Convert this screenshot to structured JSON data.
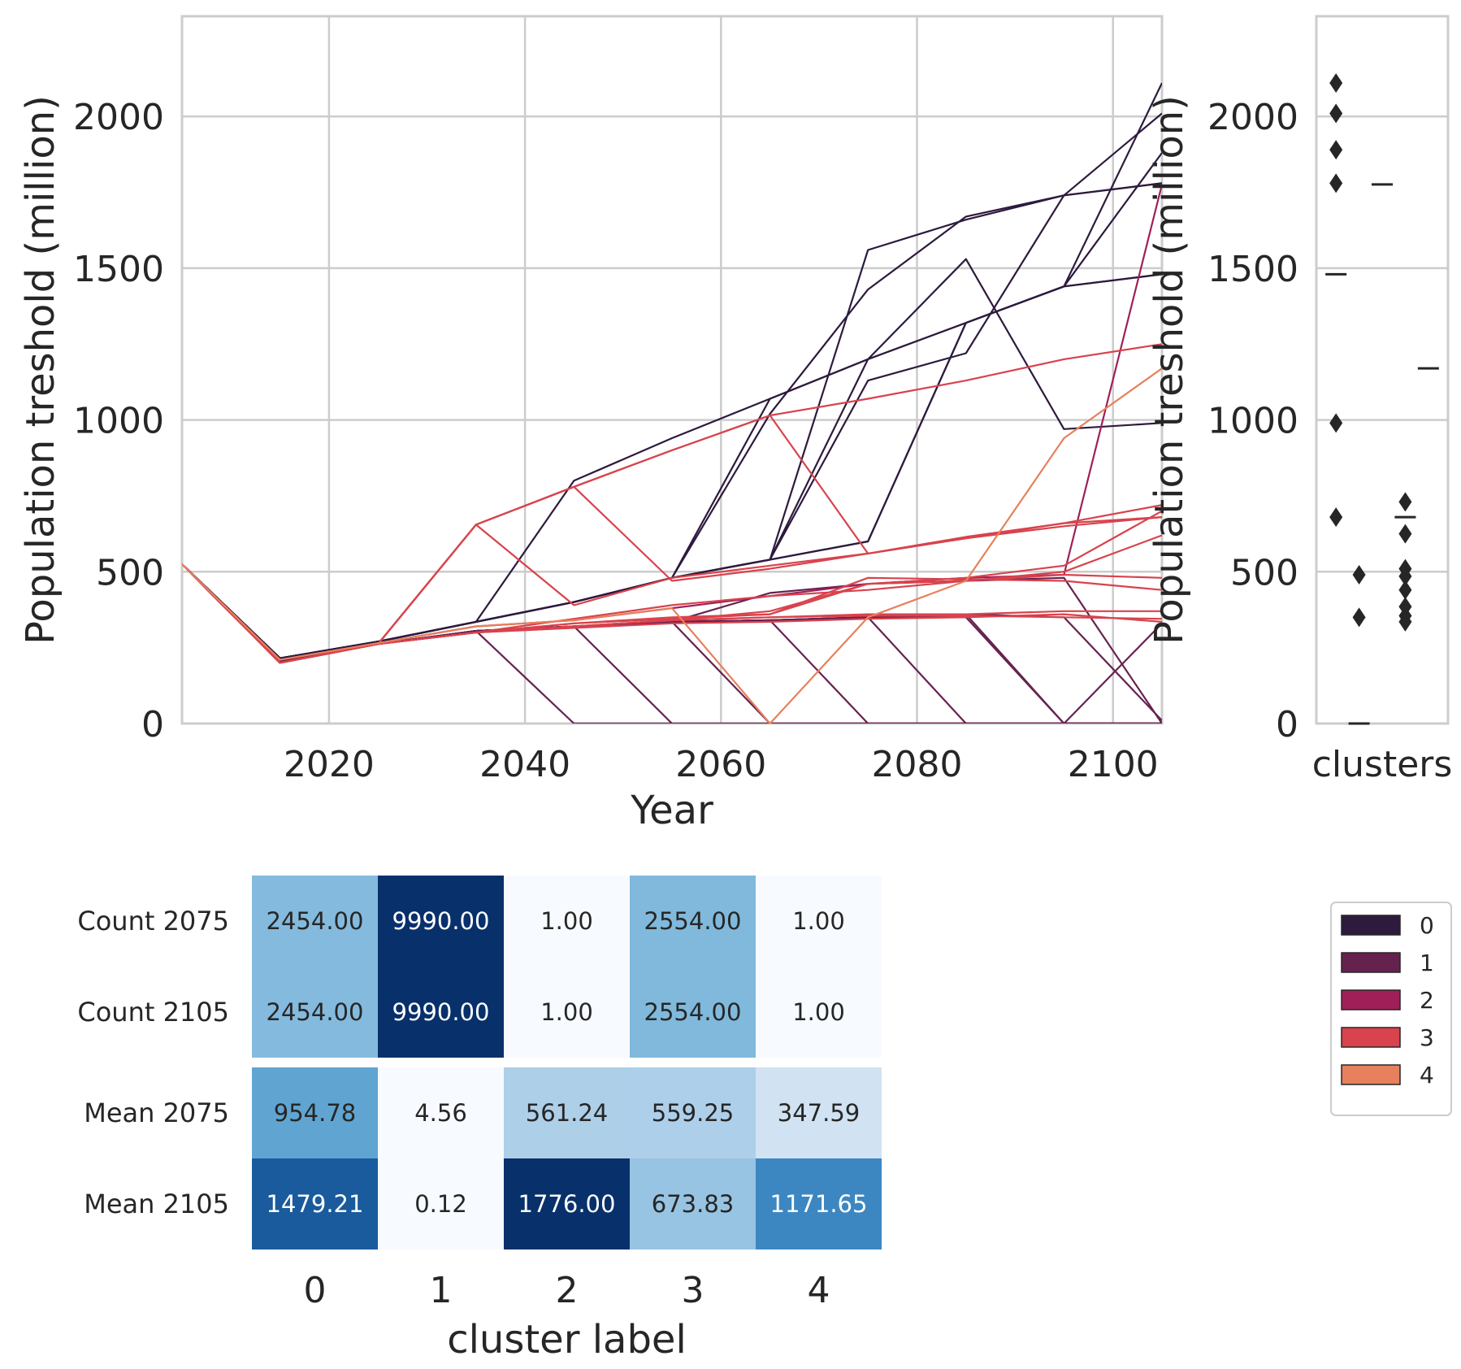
{
  "colors": {
    "cluster_palette": [
      "#2d1a3d",
      "#66224f",
      "#a01f59",
      "#d8434d",
      "#e7805c"
    ],
    "grid": "#cccccc",
    "heatmap_low": "#f7fbff",
    "heatmap_high": "#08306b"
  },
  "chart_data": [
    {
      "type": "line",
      "xlabel": "Year",
      "ylabel": "Population treshold (million)",
      "xlim": [
        2005,
        2105
      ],
      "ylim": [
        0,
        2330
      ],
      "x_ticks": [
        2020,
        2040,
        2060,
        2080,
        2100
      ],
      "y_ticks": [
        0,
        500,
        1000,
        1500,
        2000
      ],
      "grid": true,
      "x": [
        2005,
        2015,
        2025,
        2035,
        2045,
        2055,
        2065,
        2075,
        2085,
        2095,
        2105
      ],
      "series": [
        {
          "cluster": 0,
          "values": [
            525,
            215,
            270,
            335,
            400,
            480,
            540,
            600,
            1320,
            1440,
            1480
          ]
        },
        {
          "cluster": 0,
          "values": [
            525,
            215,
            270,
            335,
            400,
            480,
            540,
            1560,
            1660,
            1740,
            1780
          ]
        },
        {
          "cluster": 0,
          "values": [
            525,
            215,
            270,
            335,
            400,
            480,
            540,
            600,
            1320,
            1440,
            2110
          ]
        },
        {
          "cluster": 0,
          "values": [
            525,
            215,
            270,
            335,
            400,
            480,
            1070,
            1200,
            1320,
            1440,
            1480
          ]
        },
        {
          "cluster": 0,
          "values": [
            525,
            215,
            270,
            335,
            800,
            940,
            1070,
            1200,
            1320,
            1440,
            1880
          ]
        },
        {
          "cluster": 0,
          "values": [
            525,
            215,
            270,
            335,
            400,
            480,
            1020,
            1430,
            1670,
            1740,
            1780
          ]
        },
        {
          "cluster": 0,
          "values": [
            525,
            215,
            270,
            335,
            400,
            480,
            540,
            1130,
            1220,
            1740,
            2010
          ]
        },
        {
          "cluster": 0,
          "values": [
            525,
            215,
            270,
            335,
            400,
            480,
            540,
            1200,
            1530,
            970,
            990
          ]
        },
        {
          "cluster": 1,
          "values": [
            525,
            205,
            262,
            305,
            0,
            0,
            0,
            0,
            0,
            0,
            0
          ]
        },
        {
          "cluster": 1,
          "values": [
            525,
            205,
            262,
            305,
            320,
            0,
            0,
            0,
            0,
            0,
            0
          ]
        },
        {
          "cluster": 1,
          "values": [
            525,
            205,
            262,
            305,
            320,
            335,
            0,
            0,
            0,
            0,
            0
          ]
        },
        {
          "cluster": 1,
          "values": [
            525,
            205,
            262,
            305,
            320,
            335,
            340,
            0,
            0,
            0,
            0
          ]
        },
        {
          "cluster": 1,
          "values": [
            525,
            205,
            262,
            305,
            320,
            335,
            340,
            350,
            0,
            0,
            0
          ]
        },
        {
          "cluster": 1,
          "values": [
            525,
            205,
            262,
            305,
            320,
            335,
            340,
            350,
            350,
            0,
            0
          ]
        },
        {
          "cluster": 1,
          "values": [
            525,
            205,
            262,
            305,
            320,
            335,
            340,
            350,
            360,
            0,
            330
          ]
        },
        {
          "cluster": 1,
          "values": [
            525,
            205,
            262,
            305,
            320,
            335,
            340,
            350,
            360,
            350,
            10
          ]
        },
        {
          "cluster": 1,
          "values": [
            525,
            205,
            262,
            305,
            320,
            335,
            430,
            460,
            470,
            480,
            0
          ]
        },
        {
          "cluster": 2,
          "values": [
            525,
            210,
            265,
            320,
            340,
            380,
            420,
            460,
            480,
            490,
            1776
          ]
        },
        {
          "cluster": 3,
          "values": [
            525,
            200,
            262,
            655,
            780,
            900,
            1015,
            1070,
            1130,
            1200,
            1250
          ]
        },
        {
          "cluster": 3,
          "values": [
            525,
            200,
            262,
            655,
            390,
            480,
            520,
            560,
            610,
            660,
            680
          ]
        },
        {
          "cluster": 3,
          "values": [
            525,
            200,
            262,
            655,
            780,
            470,
            510,
            560,
            610,
            650,
            680
          ]
        },
        {
          "cluster": 3,
          "values": [
            525,
            200,
            262,
            655,
            780,
            900,
            1015,
            560,
            615,
            660,
            720
          ]
        },
        {
          "cluster": 3,
          "values": [
            525,
            200,
            262,
            300,
            345,
            390,
            420,
            440,
            470,
            500,
            620
          ]
        },
        {
          "cluster": 3,
          "values": [
            525,
            200,
            262,
            300,
            330,
            350,
            360,
            480,
            475,
            470,
            440
          ]
        },
        {
          "cluster": 3,
          "values": [
            525,
            200,
            262,
            300,
            320,
            340,
            350,
            360,
            360,
            370,
            370
          ]
        },
        {
          "cluster": 3,
          "values": [
            525,
            200,
            262,
            300,
            320,
            340,
            350,
            355,
            355,
            350,
            345
          ]
        },
        {
          "cluster": 3,
          "values": [
            525,
            200,
            262,
            300,
            320,
            340,
            370,
            460,
            480,
            520,
            700
          ]
        },
        {
          "cluster": 3,
          "values": [
            525,
            200,
            262,
            300,
            330,
            345,
            360,
            460,
            470,
            490,
            480
          ]
        },
        {
          "cluster": 3,
          "values": [
            525,
            200,
            262,
            300,
            315,
            330,
            335,
            345,
            350,
            360,
            335
          ]
        },
        {
          "cluster": 4,
          "values": [
            525,
            210,
            265,
            320,
            340,
            380,
            0,
            350,
            470,
            940,
            1170
          ]
        }
      ]
    },
    {
      "type": "scatter",
      "xlabel": "clusters",
      "ylabel": "Population treshold (million)",
      "ylim": [
        0,
        2330
      ],
      "y_ticks": [
        0,
        500,
        1000,
        1500,
        2000
      ],
      "grid": true,
      "groups": [
        {
          "cluster": 0,
          "median": 1480,
          "outliers": [
            2110,
            2010,
            1890,
            1780,
            990,
            680
          ]
        },
        {
          "cluster": 1,
          "median": 0,
          "outliers": [
            490,
            350
          ]
        },
        {
          "cluster": 2,
          "median": 1776,
          "outliers": []
        },
        {
          "cluster": 3,
          "median": 680,
          "outliers": [
            730,
            625,
            510,
            485,
            440,
            385,
            355,
            335
          ]
        },
        {
          "cluster": 4,
          "median": 1170,
          "outliers": []
        }
      ]
    },
    {
      "type": "heatmap",
      "xlabel": "cluster label",
      "categories": [
        "0",
        "1",
        "2",
        "3",
        "4"
      ],
      "rows": [
        {
          "label": "Count 2075",
          "group": 0,
          "values": [
            "2454.00",
            "9990.00",
            "1.00",
            "2554.00",
            "1.00"
          ],
          "numeric": [
            2454,
            9990,
            1,
            2554,
            1
          ]
        },
        {
          "label": "Count 2105",
          "group": 0,
          "values": [
            "2454.00",
            "9990.00",
            "1.00",
            "2554.00",
            "1.00"
          ],
          "numeric": [
            2454,
            9990,
            1,
            2554,
            1
          ]
        },
        {
          "label": "Mean 2075",
          "group": 1,
          "values": [
            "954.78",
            "4.56",
            "561.24",
            "559.25",
            "347.59"
          ],
          "numeric": [
            954.78,
            4.56,
            561.24,
            559.25,
            347.59
          ]
        },
        {
          "label": "Mean 2105",
          "group": 1,
          "values": [
            "1479.21",
            "0.12",
            "1776.00",
            "673.83",
            "1171.65"
          ],
          "numeric": [
            1479.21,
            0.12,
            1776,
            673.83,
            1171.65
          ]
        }
      ]
    }
  ],
  "legend": {
    "entries": [
      "0",
      "1",
      "2",
      "3",
      "4"
    ]
  }
}
